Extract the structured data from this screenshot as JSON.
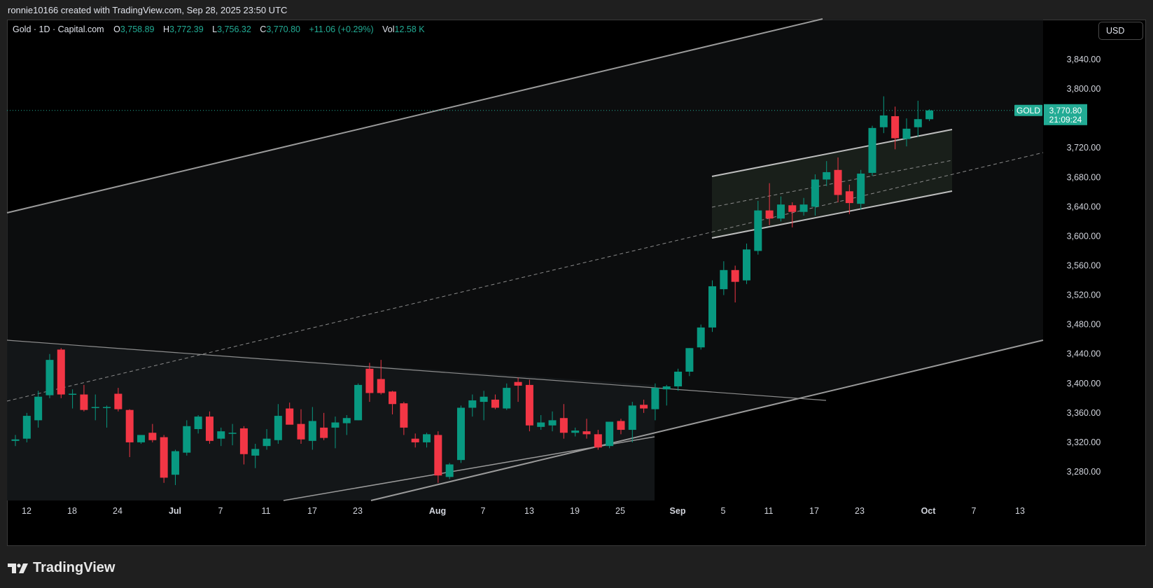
{
  "attribution": "ronnie10166 created with TradingView.com, Sep 28, 2025 23:50 UTC",
  "legend": {
    "symbol": "Gold · 1D · Capital.com",
    "o_label": "O",
    "o": "3,758.89",
    "h_label": "H",
    "h": "3,772.39",
    "l_label": "L",
    "l": "3,756.32",
    "c_label": "C",
    "c": "3,770.80",
    "change": "+11.06 (+0.29%)",
    "vol_label": "Vol",
    "vol": "12.58 K"
  },
  "currency": "USD",
  "price_tag": {
    "symbol": "GOLD",
    "price": "3,770.80",
    "countdown": "21:09:24"
  },
  "y_axis_labels": [
    "3,840.00",
    "3,800.00",
    "3,720.00",
    "3,680.00",
    "3,640.00",
    "3,600.00",
    "3,560.00",
    "3,520.00",
    "3,480.00",
    "3,440.00",
    "3,400.00",
    "3,360.00",
    "3,320.00",
    "3,280.00"
  ],
  "x_axis_labels": [
    "12",
    "18",
    "24",
    "Jul",
    "7",
    "11",
    "17",
    "23",
    "Aug",
    "7",
    "13",
    "19",
    "25",
    "Sep",
    "5",
    "11",
    "17",
    "23",
    "Oct",
    "7",
    "13"
  ],
  "brand": "TradingView",
  "colors": {
    "up": "#089981",
    "down": "#f23645",
    "last_price": "#22ab94"
  },
  "chart_data": {
    "type": "candlestick",
    "symbol": "Gold",
    "interval": "1D",
    "candles": [
      {
        "o": 3322,
        "h": 3330,
        "l": 3315,
        "c": 3324
      },
      {
        "o": 3325,
        "h": 3360,
        "l": 3320,
        "c": 3356
      },
      {
        "o": 3350,
        "h": 3390,
        "l": 3340,
        "c": 3382
      },
      {
        "o": 3384,
        "h": 3440,
        "l": 3380,
        "c": 3432
      },
      {
        "o": 3446,
        "h": 3448,
        "l": 3380,
        "c": 3385
      },
      {
        "o": 3385,
        "h": 3392,
        "l": 3366,
        "c": 3386
      },
      {
        "o": 3385,
        "h": 3398,
        "l": 3362,
        "c": 3364
      },
      {
        "o": 3368,
        "h": 3385,
        "l": 3350,
        "c": 3368
      },
      {
        "o": 3368,
        "h": 3370,
        "l": 3340,
        "c": 3368
      },
      {
        "o": 3386,
        "h": 3394,
        "l": 3362,
        "c": 3365
      },
      {
        "o": 3364,
        "h": 3365,
        "l": 3300,
        "c": 3320
      },
      {
        "o": 3320,
        "h": 3330,
        "l": 3318,
        "c": 3330
      },
      {
        "o": 3333,
        "h": 3345,
        "l": 3320,
        "c": 3323
      },
      {
        "o": 3327,
        "h": 3330,
        "l": 3265,
        "c": 3272
      },
      {
        "o": 3276,
        "h": 3310,
        "l": 3262,
        "c": 3308
      },
      {
        "o": 3306,
        "h": 3350,
        "l": 3302,
        "c": 3342
      },
      {
        "o": 3338,
        "h": 3357,
        "l": 3332,
        "c": 3355
      },
      {
        "o": 3355,
        "h": 3362,
        "l": 3318,
        "c": 3322
      },
      {
        "o": 3325,
        "h": 3340,
        "l": 3315,
        "c": 3335
      },
      {
        "o": 3333,
        "h": 3345,
        "l": 3316,
        "c": 3333
      },
      {
        "o": 3339,
        "h": 3342,
        "l": 3290,
        "c": 3304
      },
      {
        "o": 3302,
        "h": 3318,
        "l": 3285,
        "c": 3311
      },
      {
        "o": 3315,
        "h": 3338,
        "l": 3310,
        "c": 3325
      },
      {
        "o": 3323,
        "h": 3372,
        "l": 3318,
        "c": 3356
      },
      {
        "o": 3366,
        "h": 3374,
        "l": 3345,
        "c": 3344
      },
      {
        "o": 3345,
        "h": 3365,
        "l": 3318,
        "c": 3324
      },
      {
        "o": 3322,
        "h": 3368,
        "l": 3310,
        "c": 3349
      },
      {
        "o": 3340,
        "h": 3360,
        "l": 3323,
        "c": 3326
      },
      {
        "o": 3340,
        "h": 3355,
        "l": 3312,
        "c": 3347
      },
      {
        "o": 3346,
        "h": 3357,
        "l": 3330,
        "c": 3353
      },
      {
        "o": 3350,
        "h": 3400,
        "l": 3350,
        "c": 3398
      },
      {
        "o": 3420,
        "h": 3428,
        "l": 3375,
        "c": 3387
      },
      {
        "o": 3406,
        "h": 3432,
        "l": 3385,
        "c": 3387
      },
      {
        "o": 3389,
        "h": 3390,
        "l": 3358,
        "c": 3372
      },
      {
        "o": 3373,
        "h": 3375,
        "l": 3330,
        "c": 3340
      },
      {
        "o": 3325,
        "h": 3332,
        "l": 3313,
        "c": 3320
      },
      {
        "o": 3320,
        "h": 3333,
        "l": 3313,
        "c": 3331
      },
      {
        "o": 3330,
        "h": 3335,
        "l": 3265,
        "c": 3275
      },
      {
        "o": 3273,
        "h": 3292,
        "l": 3270,
        "c": 3290
      },
      {
        "o": 3296,
        "h": 3370,
        "l": 3292,
        "c": 3367
      },
      {
        "o": 3367,
        "h": 3385,
        "l": 3355,
        "c": 3377
      },
      {
        "o": 3375,
        "h": 3390,
        "l": 3350,
        "c": 3382
      },
      {
        "o": 3378,
        "h": 3385,
        "l": 3365,
        "c": 3367
      },
      {
        "o": 3366,
        "h": 3400,
        "l": 3364,
        "c": 3394
      },
      {
        "o": 3402,
        "h": 3408,
        "l": 3375,
        "c": 3397
      },
      {
        "o": 3398,
        "h": 3405,
        "l": 3335,
        "c": 3343
      },
      {
        "o": 3341,
        "h": 3357,
        "l": 3337,
        "c": 3347
      },
      {
        "o": 3343,
        "h": 3362,
        "l": 3335,
        "c": 3350
      },
      {
        "o": 3353,
        "h": 3372,
        "l": 3325,
        "c": 3333
      },
      {
        "o": 3333,
        "h": 3340,
        "l": 3328,
        "c": 3336
      },
      {
        "o": 3335,
        "h": 3352,
        "l": 3325,
        "c": 3331
      },
      {
        "o": 3331,
        "h": 3337,
        "l": 3310,
        "c": 3313
      },
      {
        "o": 3315,
        "h": 3348,
        "l": 3312,
        "c": 3348
      },
      {
        "o": 3349,
        "h": 3352,
        "l": 3331,
        "c": 3337
      },
      {
        "o": 3337,
        "h": 3375,
        "l": 3320,
        "c": 3370
      },
      {
        "o": 3371,
        "h": 3378,
        "l": 3360,
        "c": 3366
      },
      {
        "o": 3365,
        "h": 3400,
        "l": 3350,
        "c": 3394
      },
      {
        "o": 3392,
        "h": 3398,
        "l": 3370,
        "c": 3396
      },
      {
        "o": 3396,
        "h": 3420,
        "l": 3390,
        "c": 3416
      },
      {
        "o": 3416,
        "h": 3448,
        "l": 3410,
        "c": 3448
      },
      {
        "o": 3449,
        "h": 3480,
        "l": 3446,
        "c": 3476
      },
      {
        "o": 3476,
        "h": 3540,
        "l": 3470,
        "c": 3532
      },
      {
        "o": 3528,
        "h": 3566,
        "l": 3520,
        "c": 3554
      },
      {
        "o": 3554,
        "h": 3560,
        "l": 3510,
        "c": 3538
      },
      {
        "o": 3540,
        "h": 3590,
        "l": 3535,
        "c": 3582
      },
      {
        "o": 3580,
        "h": 3648,
        "l": 3575,
        "c": 3635
      },
      {
        "o": 3635,
        "h": 3672,
        "l": 3615,
        "c": 3624
      },
      {
        "o": 3624,
        "h": 3654,
        "l": 3620,
        "c": 3643
      },
      {
        "o": 3642,
        "h": 3646,
        "l": 3612,
        "c": 3633
      },
      {
        "o": 3633,
        "h": 3652,
        "l": 3628,
        "c": 3643
      },
      {
        "o": 3640,
        "h": 3684,
        "l": 3628,
        "c": 3677
      },
      {
        "o": 3677,
        "h": 3702,
        "l": 3668,
        "c": 3687
      },
      {
        "o": 3690,
        "h": 3707,
        "l": 3646,
        "c": 3656
      },
      {
        "o": 3661,
        "h": 3670,
        "l": 3630,
        "c": 3645
      },
      {
        "o": 3644,
        "h": 3690,
        "l": 3636,
        "c": 3685
      },
      {
        "o": 3686,
        "h": 3750,
        "l": 3682,
        "c": 3747
      },
      {
        "o": 3748,
        "h": 3790,
        "l": 3740,
        "c": 3764
      },
      {
        "o": 3763,
        "h": 3776,
        "l": 3718,
        "c": 3733
      },
      {
        "o": 3732,
        "h": 3760,
        "l": 3722,
        "c": 3746
      },
      {
        "o": 3748,
        "h": 3784,
        "l": 3735,
        "c": 3759
      },
      {
        "o": 3758.89,
        "h": 3772.39,
        "l": 3756.32,
        "c": 3770.8
      }
    ],
    "last_price": 3770.8,
    "ylim": [
      3240,
      3880
    ]
  }
}
